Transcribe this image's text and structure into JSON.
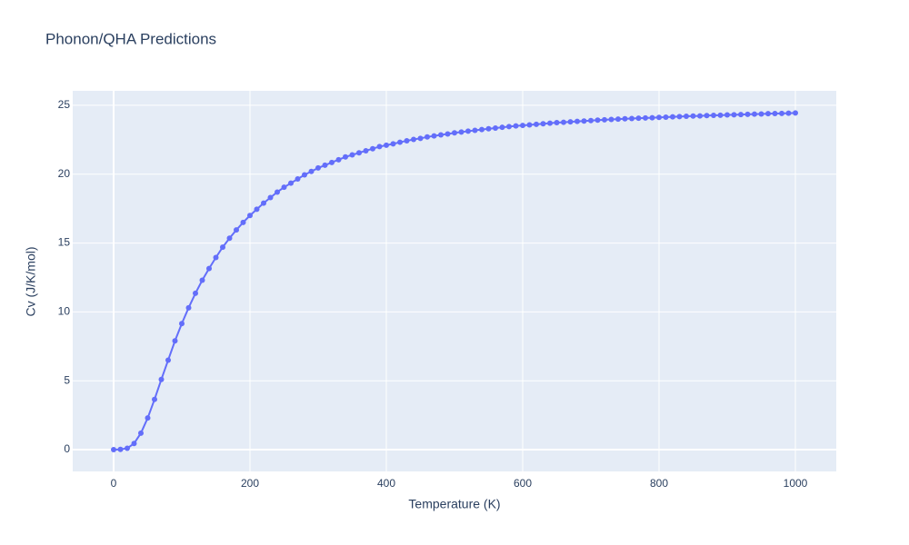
{
  "chart_data": {
    "type": "line",
    "title": "Phonon/QHA Predictions",
    "x_label": "Temperature (K)",
    "y_label": "Cv (J/K/mol)",
    "x": [
      0,
      10,
      20,
      30,
      40,
      50,
      60,
      70,
      80,
      90,
      100,
      110,
      120,
      130,
      140,
      150,
      160,
      170,
      180,
      190,
      200,
      210,
      220,
      230,
      240,
      250,
      260,
      270,
      280,
      290,
      300,
      310,
      320,
      330,
      340,
      350,
      360,
      370,
      380,
      390,
      400,
      410,
      420,
      430,
      440,
      450,
      460,
      470,
      480,
      490,
      500,
      510,
      520,
      530,
      540,
      550,
      560,
      570,
      580,
      590,
      600,
      610,
      620,
      630,
      640,
      650,
      660,
      670,
      680,
      690,
      700,
      710,
      720,
      730,
      740,
      750,
      760,
      770,
      780,
      790,
      800,
      810,
      820,
      830,
      840,
      850,
      860,
      870,
      880,
      890,
      900,
      910,
      920,
      930,
      940,
      950,
      960,
      970,
      980,
      990,
      1000
    ],
    "series": [
      {
        "color": "#636efa",
        "values": [
          0,
          0.02,
          0.1,
          0.45,
          1.2,
          2.3,
          3.65,
          5.1,
          6.5,
          7.9,
          9.15,
          10.3,
          11.35,
          12.3,
          13.15,
          13.95,
          14.7,
          15.35,
          15.95,
          16.5,
          17.0,
          17.45,
          17.9,
          18.3,
          18.7,
          19.05,
          19.35,
          19.65,
          19.95,
          20.2,
          20.45,
          20.65,
          20.85,
          21.05,
          21.25,
          21.4,
          21.55,
          21.7,
          21.85,
          22.0,
          22.1,
          22.2,
          22.32,
          22.42,
          22.52,
          22.6,
          22.7,
          22.78,
          22.85,
          22.92,
          23.0,
          23.06,
          23.12,
          23.18,
          23.24,
          23.3,
          23.35,
          23.4,
          23.45,
          23.5,
          23.54,
          23.58,
          23.62,
          23.66,
          23.7,
          23.74,
          23.77,
          23.8,
          23.83,
          23.86,
          23.89,
          23.92,
          23.95,
          23.97,
          24.0,
          24.02,
          24.04,
          24.06,
          24.08,
          24.1,
          24.12,
          24.14,
          24.16,
          24.18,
          24.2,
          24.22,
          24.23,
          24.25,
          24.27,
          24.28,
          24.3,
          24.31,
          24.33,
          24.34,
          24.36,
          24.37,
          24.39,
          24.4,
          24.41,
          24.43,
          24.44
        ]
      }
    ],
    "xlim": [
      -60,
      1060
    ],
    "ylim": [
      -1.58,
      26.05
    ],
    "xticks": [
      0,
      200,
      400,
      600,
      800,
      1000
    ],
    "yticks": [
      0,
      5,
      10,
      15,
      20,
      25
    ],
    "grid": true,
    "background": "#e5ecf6"
  }
}
